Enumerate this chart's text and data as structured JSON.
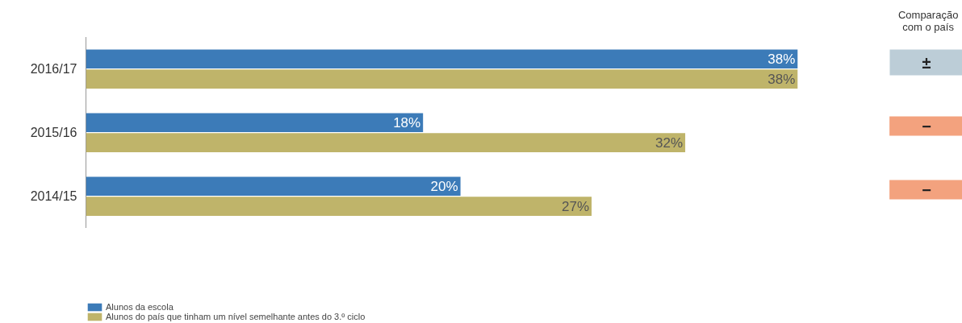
{
  "chart_data": {
    "type": "bar",
    "orientation": "horizontal",
    "categories": [
      "2016/17",
      "2015/16",
      "2014/15"
    ],
    "series": [
      {
        "name": "Alunos da escola",
        "color": "#3c7bb8",
        "values": [
          38,
          18,
          20
        ],
        "value_labels": [
          "38%",
          "18%",
          "20%"
        ]
      },
      {
        "name": "Alunos do país que tinham um nível semelhante antes do 3.º ciclo",
        "color": "#bfb46a",
        "values": [
          38,
          32,
          27
        ],
        "value_labels": [
          "38%",
          "32%",
          "27%"
        ]
      }
    ],
    "legend": "bottom left",
    "annotations": [
      "Comparação com o país",
      "±",
      "−",
      "−"
    ]
  }
}
